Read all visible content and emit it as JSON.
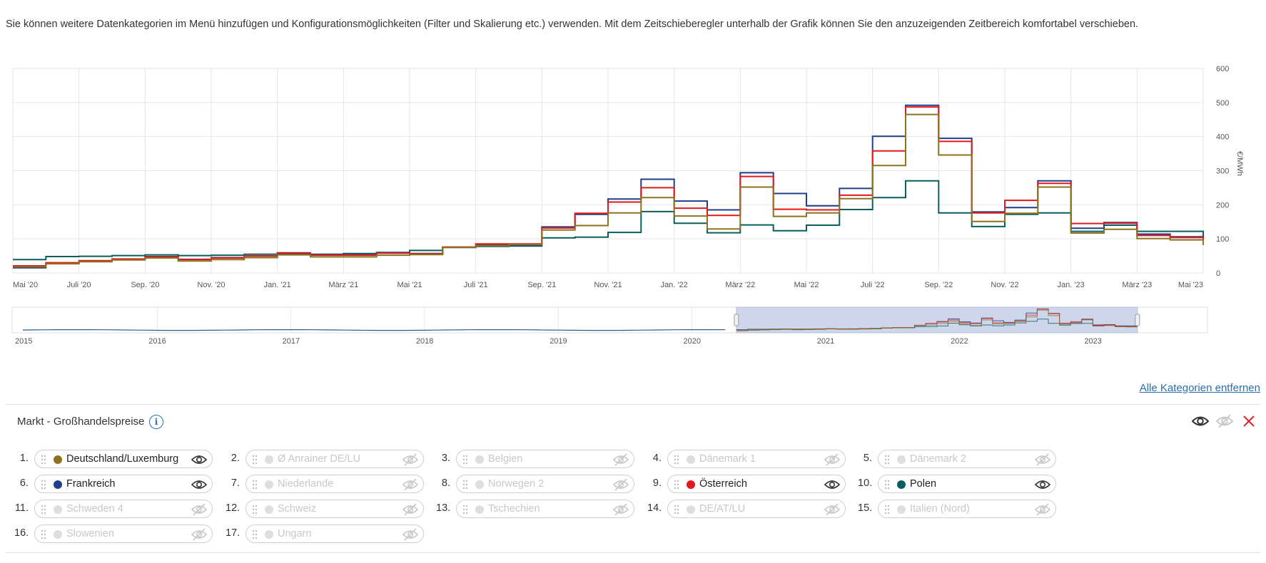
{
  "intro_text": "Sie können weitere Datenkategorien im Menü hinzufügen und Konfigurationsmöglichkeiten (Filter und Skalierung etc.) verwenden. Mit dem Zeitschieberegler unterhalb der Grafik können Sie den anzuzeigenden Zeitbereich komfortabel verschieben.",
  "chart_data": {
    "type": "line",
    "step": true,
    "ylabel": "€/MWh",
    "ylim": [
      0,
      600
    ],
    "yticks": [
      0,
      100,
      200,
      300,
      400,
      500,
      600
    ],
    "x_range_months": [
      0,
      36
    ],
    "xtick_labels": [
      "Mai '20",
      "Juli '20",
      "Sep. '20",
      "Nov. '20",
      "Jan. '21",
      "März '21",
      "Mai '21",
      "Juli '21",
      "Sep. '21",
      "Nov. '21",
      "Jan. '22",
      "März '22",
      "Mai '22",
      "Juli '22",
      "Sep. '22",
      "Nov. '22",
      "Jan. '23",
      "März '23",
      "Mai '23"
    ],
    "x": [
      "2020-05",
      "2020-06",
      "2020-07",
      "2020-08",
      "2020-09",
      "2020-10",
      "2020-11",
      "2020-12",
      "2021-01",
      "2021-02",
      "2021-03",
      "2021-04",
      "2021-05",
      "2021-06",
      "2021-07",
      "2021-08",
      "2021-09",
      "2021-10",
      "2021-11",
      "2021-12",
      "2022-01",
      "2022-02",
      "2022-03",
      "2022-04",
      "2022-05",
      "2022-06",
      "2022-07",
      "2022-08",
      "2022-09",
      "2022-10",
      "2022-11",
      "2022-12",
      "2023-01",
      "2023-02",
      "2023-03",
      "2023-04"
    ],
    "series": [
      {
        "name": "Deutschland/Luxemburg",
        "color": "#8B7320",
        "values": [
          18,
          27,
          33,
          38,
          44,
          35,
          39,
          45,
          53,
          47,
          47,
          52,
          54,
          75,
          80,
          83,
          126,
          139,
          176,
          221,
          167,
          129,
          252,
          166,
          176,
          218,
          315,
          465,
          346,
          151,
          175,
          252,
          117,
          128,
          101,
          97
        ]
      },
      {
        "name": "Frankreich",
        "color": "#1F3F8A",
        "values": [
          15,
          29,
          35,
          40,
          48,
          40,
          45,
          50,
          59,
          53,
          53,
          59,
          57,
          75,
          83,
          81,
          135,
          172,
          217,
          275,
          211,
          185,
          294,
          233,
          197,
          248,
          401,
          492,
          395,
          179,
          192,
          270,
          131,
          148,
          114,
          106
        ]
      },
      {
        "name": "Österreich",
        "color": "#E3191B",
        "values": [
          21,
          30,
          36,
          41,
          47,
          39,
          44,
          50,
          58,
          52,
          52,
          58,
          56,
          76,
          85,
          85,
          132,
          175,
          208,
          250,
          190,
          169,
          283,
          187,
          185,
          228,
          358,
          487,
          386,
          176,
          213,
          263,
          145,
          146,
          110,
          104
        ]
      },
      {
        "name": "Polen",
        "color": "#0B5E5E",
        "values": [
          39,
          48,
          49,
          51,
          53,
          51,
          52,
          55,
          55,
          55,
          57,
          60,
          66,
          75,
          78,
          79,
          103,
          105,
          119,
          180,
          146,
          118,
          141,
          124,
          140,
          186,
          221,
          270,
          176,
          136,
          172,
          176,
          122,
          140,
          122,
          122
        ]
      }
    ]
  },
  "navigator": {
    "year_labels": [
      "2015",
      "2016",
      "2017",
      "2018",
      "2019",
      "2020",
      "2021",
      "2022",
      "2023"
    ]
  },
  "remove_all_label": "Alle Kategorien entfernen",
  "section": {
    "title": "Markt - Großhandelspreise"
  },
  "categories": [
    {
      "index": "1.",
      "label": "Deutschland/Luxemburg",
      "active": true,
      "color": "#8B7320"
    },
    {
      "index": "2.",
      "label": "Ø Anrainer DE/LU",
      "active": false
    },
    {
      "index": "3.",
      "label": "Belgien",
      "active": false
    },
    {
      "index": "4.",
      "label": "Dänemark 1",
      "active": false
    },
    {
      "index": "5.",
      "label": "Dänemark 2",
      "active": false
    },
    {
      "index": "6.",
      "label": "Frankreich",
      "active": true,
      "color": "#1F3F8A"
    },
    {
      "index": "7.",
      "label": "Niederlande",
      "active": false
    },
    {
      "index": "8.",
      "label": "Norwegen 2",
      "active": false
    },
    {
      "index": "9.",
      "label": "Österreich",
      "active": true,
      "color": "#E3191B"
    },
    {
      "index": "10.",
      "label": "Polen",
      "active": true,
      "color": "#0B5E5E"
    },
    {
      "index": "11.",
      "label": "Schweden 4",
      "active": false
    },
    {
      "index": "12.",
      "label": "Schweiz",
      "active": false
    },
    {
      "index": "13.",
      "label": "Tschechien",
      "active": false
    },
    {
      "index": "14.",
      "label": "DE/AT/LU",
      "active": false
    },
    {
      "index": "15.",
      "label": "Italien (Nord)",
      "active": false
    },
    {
      "index": "16.",
      "label": "Slowenien",
      "active": false
    },
    {
      "index": "17.",
      "label": "Ungarn",
      "active": false
    }
  ]
}
